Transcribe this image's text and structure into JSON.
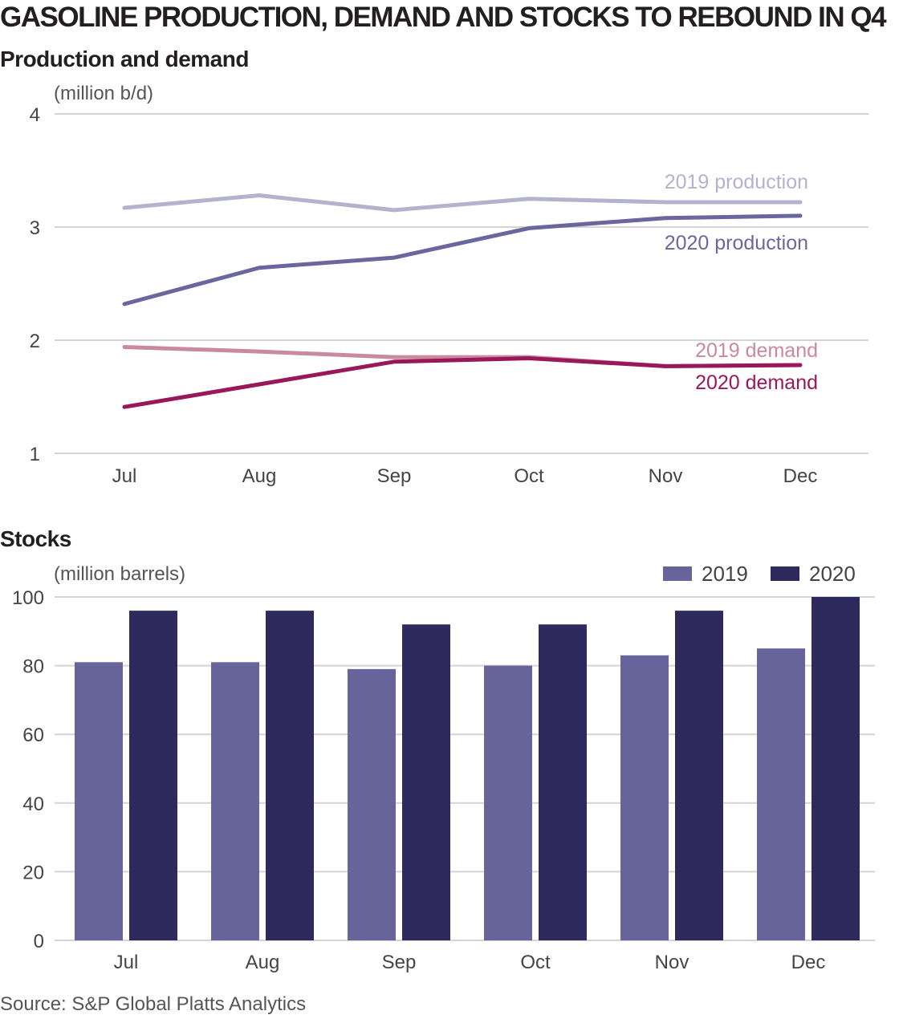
{
  "title": "GASOLINE PRODUCTION, DEMAND AND STOCKS TO REBOUND IN Q4",
  "source": "Source: S&P Global Platts Analytics",
  "colors": {
    "prod_2019": "#b3b2cf",
    "prod_2020": "#6a679e",
    "dem_2019": "#c98aa0",
    "dem_2020": "#98185a",
    "stock_2019": "#66649a",
    "stock_2020": "#2e2a5e",
    "grid": "#d4d4d4"
  },
  "chart_data": [
    {
      "type": "line",
      "title": "Production and demand",
      "ylabel": "(million b/d)",
      "categories": [
        "Jul",
        "Aug",
        "Sep",
        "Oct",
        "Nov",
        "Dec"
      ],
      "ylim": [
        1,
        4
      ],
      "yticks": [
        1,
        2,
        3,
        4
      ],
      "grid": true,
      "series": [
        {
          "name": "2019 production",
          "values": [
            3.17,
            3.28,
            3.15,
            3.25,
            3.22,
            3.22
          ],
          "color": "#b3b2cf"
        },
        {
          "name": "2020 production",
          "values": [
            2.32,
            2.64,
            2.73,
            2.99,
            3.08,
            3.1
          ],
          "color": "#6a679e"
        },
        {
          "name": "2019 demand",
          "values": [
            1.94,
            1.9,
            1.85,
            1.85,
            1.77,
            1.78
          ],
          "color": "#c98aa0"
        },
        {
          "name": "2020 demand",
          "values": [
            1.41,
            1.61,
            1.81,
            1.84,
            1.77,
            1.78
          ],
          "color": "#98185a"
        }
      ]
    },
    {
      "type": "bar",
      "title": "Stocks",
      "ylabel": "(million barrels)",
      "categories": [
        "Jul",
        "Aug",
        "Sep",
        "Oct",
        "Nov",
        "Dec"
      ],
      "ylim": [
        0,
        100
      ],
      "yticks": [
        0,
        20,
        40,
        60,
        80,
        100
      ],
      "grid": true,
      "legend": "top-right",
      "series": [
        {
          "name": "2019",
          "values": [
            81,
            81,
            79,
            80,
            83,
            85
          ],
          "color": "#66649a"
        },
        {
          "name": "2020",
          "values": [
            96,
            96,
            92,
            92,
            96,
            100
          ],
          "color": "#2e2a5e"
        }
      ]
    }
  ]
}
